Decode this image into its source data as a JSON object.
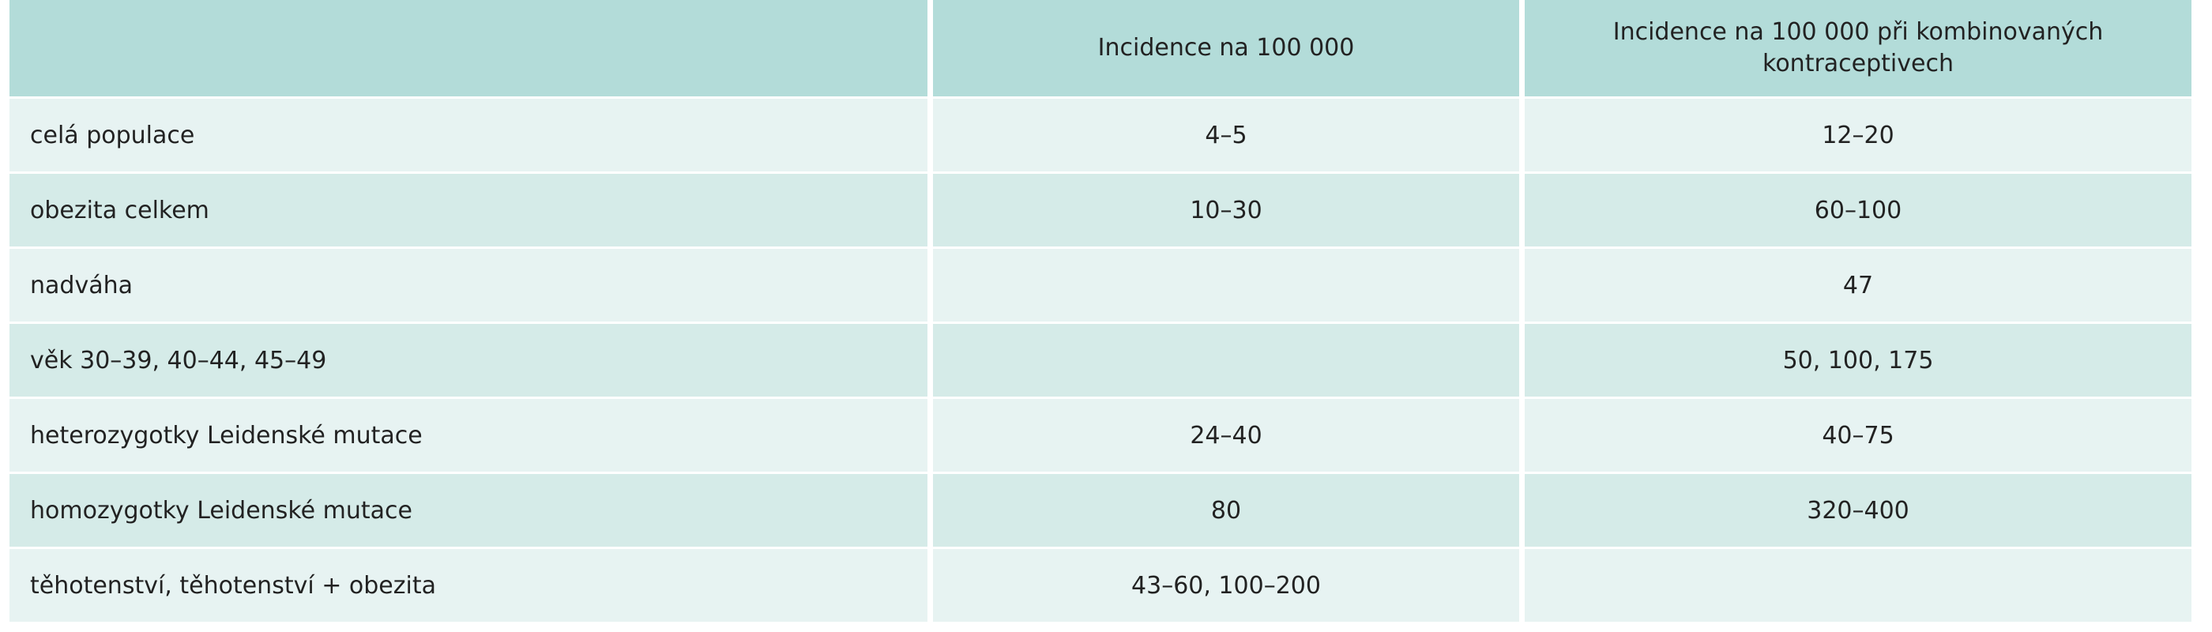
{
  "table": {
    "header": [
      "Incidence na 100 000",
      "Incidence na 100 000 při kombinovaných kontraceptivech"
    ],
    "rows": [
      {
        "label": "celá populace",
        "incidence": "4–5",
        "combined": "12–20"
      },
      {
        "label": "obezita celkem",
        "incidence": "10–30",
        "combined": "60–100"
      },
      {
        "label": "nadváha",
        "combined": "47"
      },
      {
        "label": "věk 30–39, 40–44, 45–49",
        "combined": "50, 100, 175"
      },
      {
        "label": "heterozygotky Leidenské mutace",
        "incidence": "24–40",
        "combined": "40–75"
      },
      {
        "label": "homozygotky Leidenské mutace",
        "incidence": "80",
        "combined": "320–400"
      },
      {
        "label": "těhotenství, těhotenství + obezita",
        "incidence": "43–60, 100–200"
      }
    ]
  }
}
